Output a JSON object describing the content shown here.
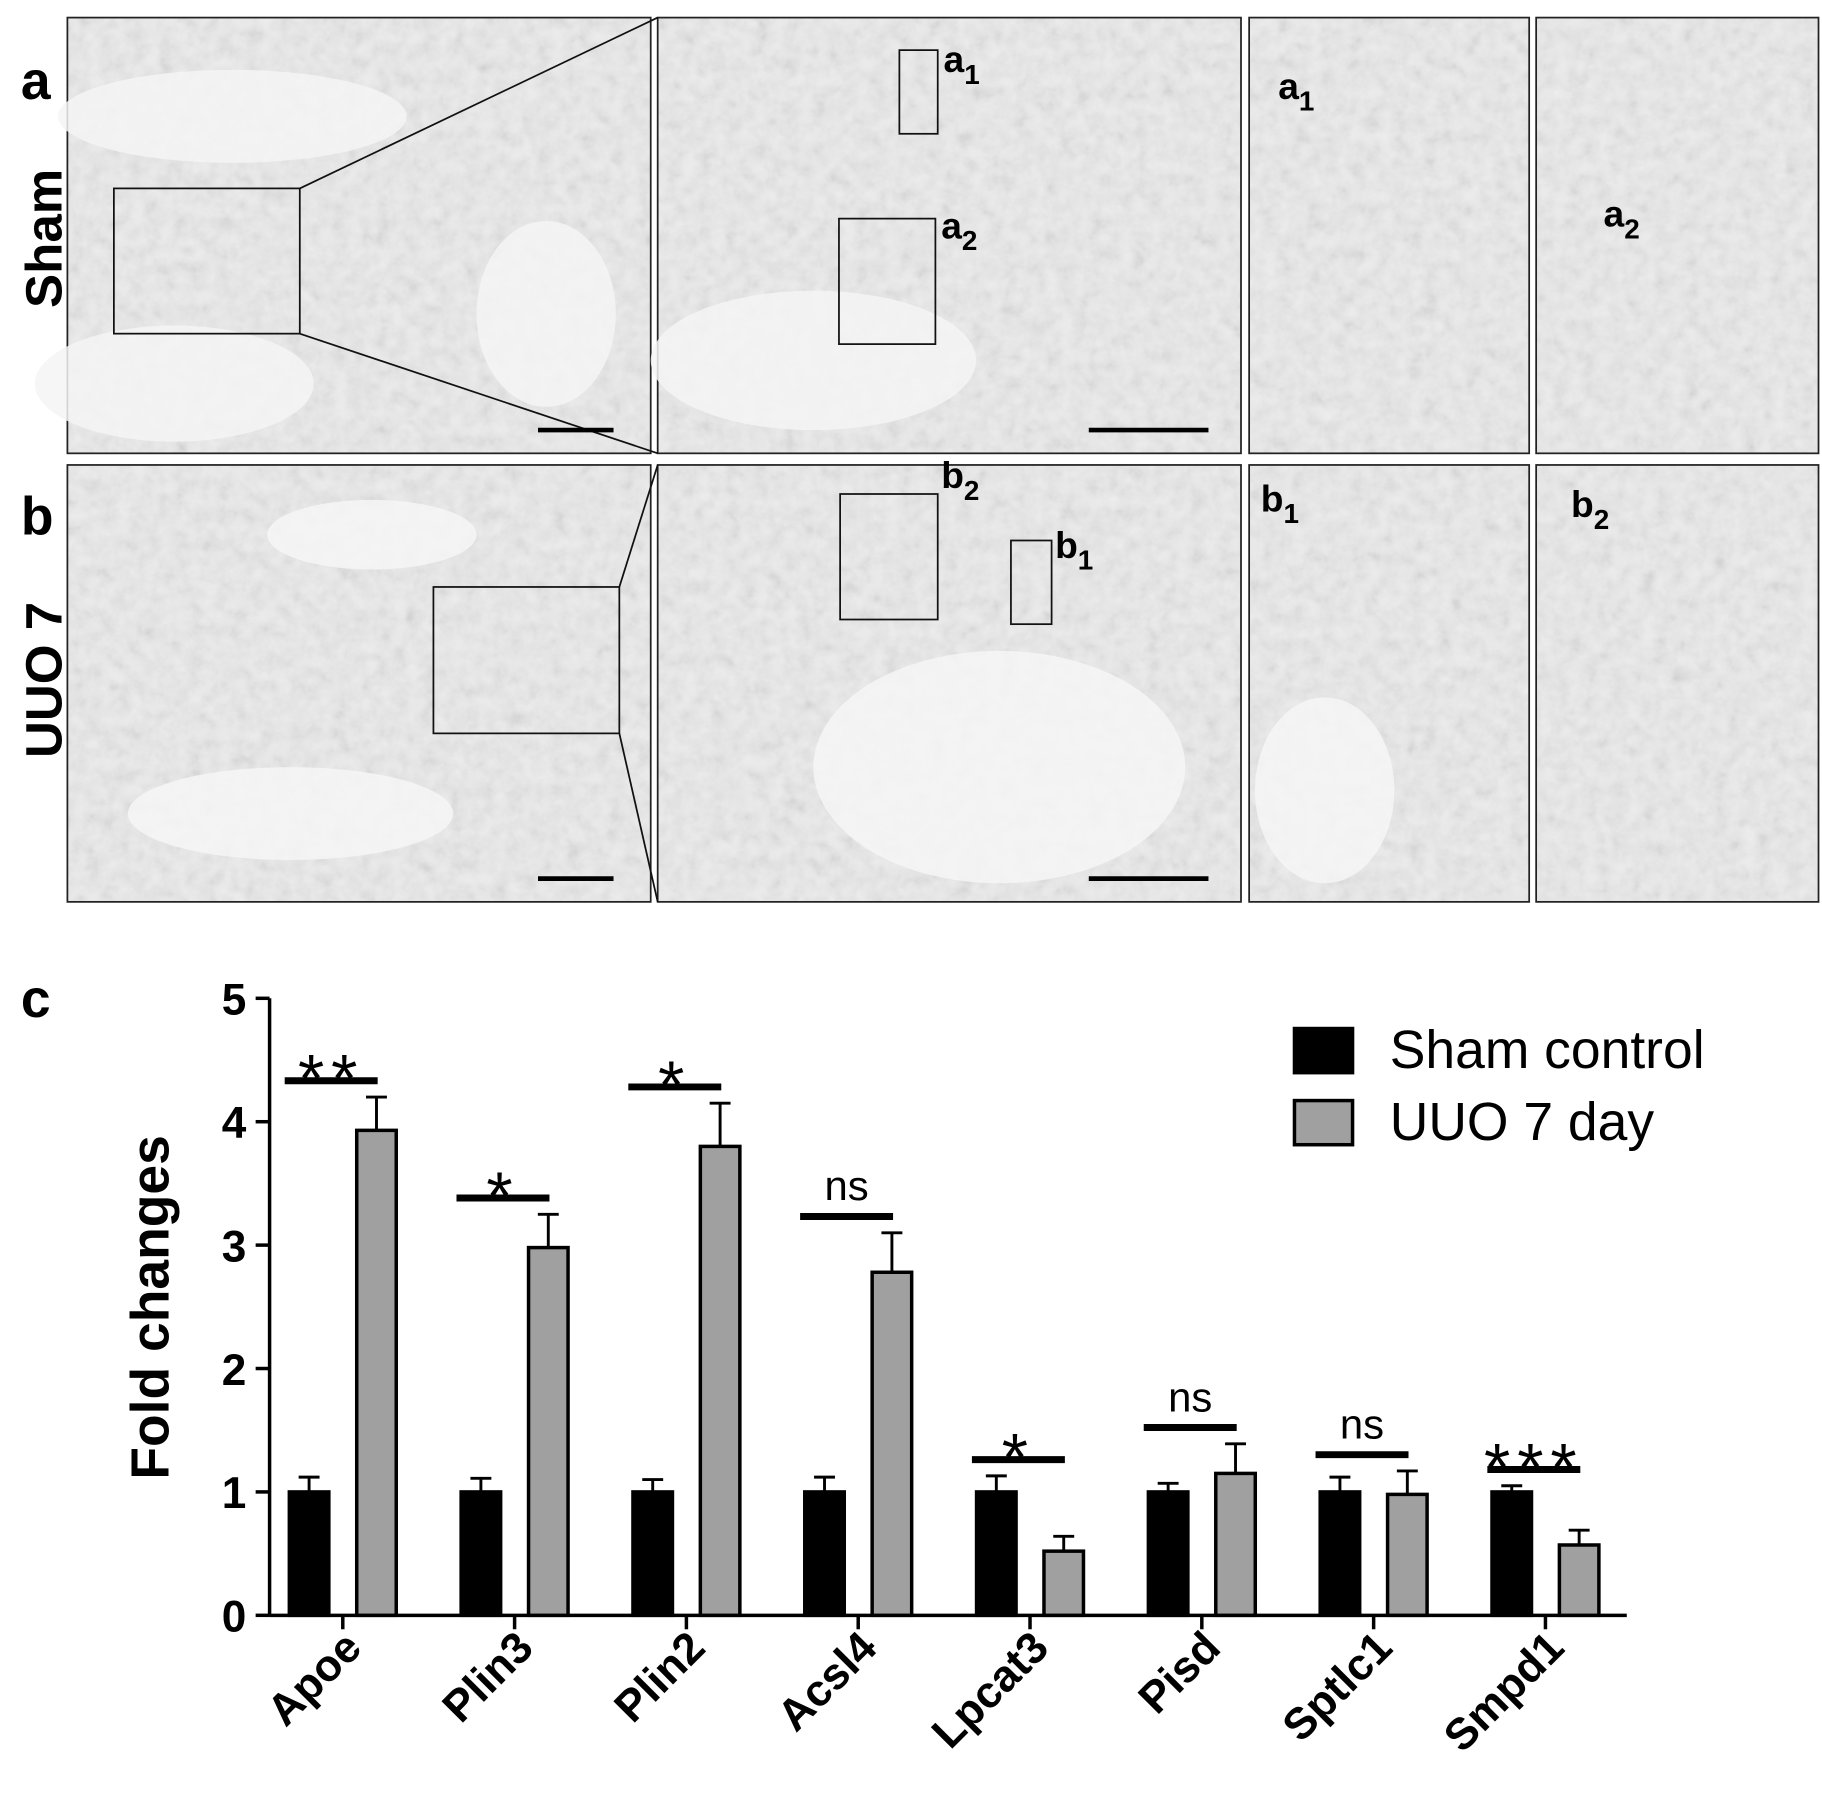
{
  "figure": {
    "panel_labels": [
      "a",
      "b",
      "c"
    ],
    "row_labels": [
      "Sham",
      "UUO 7"
    ],
    "inset_labels": [
      {
        "letter": "a",
        "sub": "1"
      },
      {
        "letter": "a",
        "sub": "2"
      },
      {
        "letter": "a",
        "sub": "1"
      },
      {
        "letter": "a",
        "sub": "2"
      },
      {
        "letter": "b",
        "sub": "2"
      },
      {
        "letter": "b",
        "sub": "1"
      },
      {
        "letter": "b",
        "sub": "1"
      },
      {
        "letter": "b",
        "sub": "2"
      }
    ]
  },
  "chart_data": {
    "type": "bar",
    "ylabel": "Fold changes",
    "categories": [
      "Apoe",
      "Plin3",
      "Plin2",
      "Acsl4",
      "Lpcat3",
      "Pisd",
      "Sptlc1",
      "Smpd1"
    ],
    "series": [
      {
        "name": "Sham control",
        "color": "#000000",
        "values": [
          1,
          1,
          1,
          1,
          1,
          1,
          1,
          1
        ],
        "errors": [
          0.12,
          0.11,
          0.1,
          0.12,
          0.13,
          0.07,
          0.12,
          0.05
        ]
      },
      {
        "name": "UUO 7 day",
        "color": "#a0a0a0",
        "values": [
          3.93,
          2.98,
          3.8,
          2.78,
          0.52,
          1.15,
          0.98,
          0.57
        ],
        "errors": [
          0.27,
          0.27,
          0.35,
          0.32,
          0.12,
          0.24,
          0.19,
          0.12
        ]
      }
    ],
    "significance": [
      "**",
      "*",
      "*",
      "ns",
      "*",
      "ns",
      "ns",
      "***"
    ],
    "ylim": [
      0,
      5
    ],
    "yticks": [
      0,
      1,
      2,
      3,
      4,
      5
    ],
    "legend": "upper right"
  }
}
